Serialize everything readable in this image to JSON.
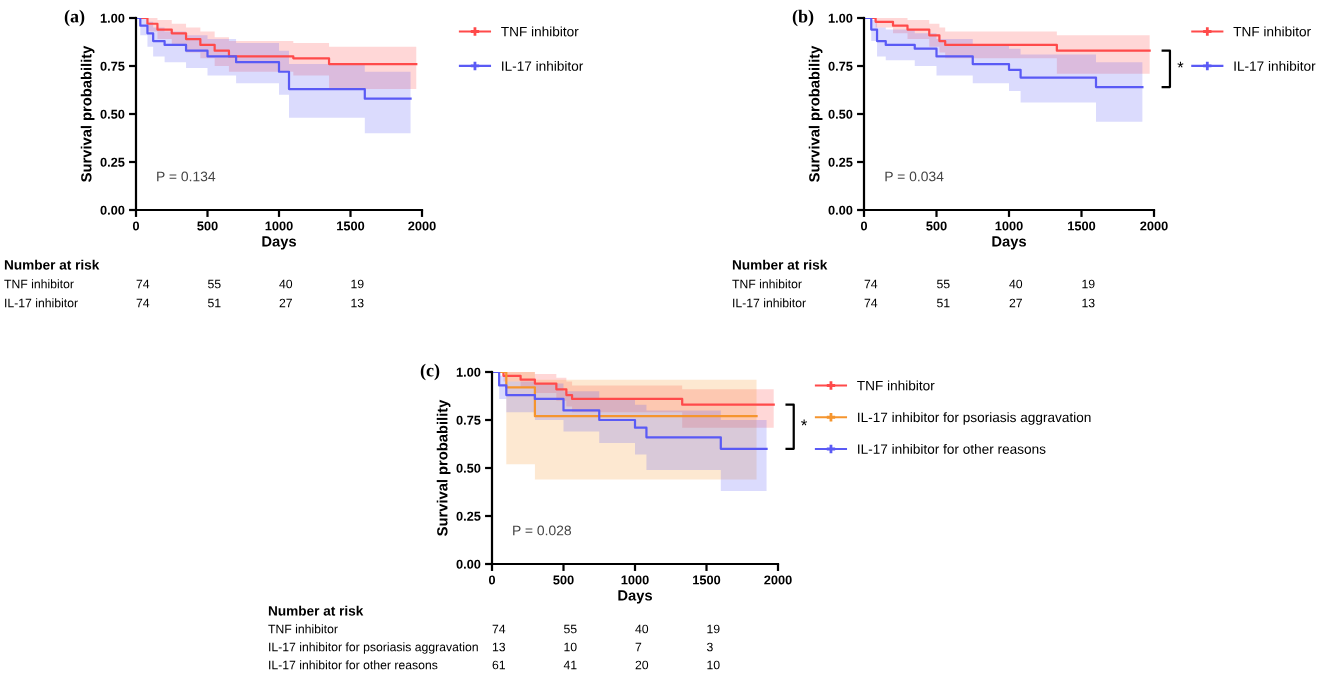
{
  "chart_data": [
    {
      "type": "step",
      "title": "(a)",
      "xlabel": "Days",
      "ylabel": "Survival probability",
      "xlim": [
        0,
        2000
      ],
      "ylim": [
        0,
        1.0
      ],
      "xticks": [
        0,
        500,
        1000,
        1500,
        2000
      ],
      "yticks": [
        {
          "value": 0,
          "label": "0.00"
        },
        {
          "value": 0.25,
          "label": "0.25"
        },
        {
          "value": 0.5,
          "label": "0.50"
        },
        {
          "value": 0.75,
          "label": "0.75"
        },
        {
          "value": 1.0,
          "label": "1.00"
        }
      ],
      "grid": false,
      "legend": "right",
      "annotations": [
        "P = 0.134",
        "Number at risk",
        "TNF inhibitor",
        "74",
        "55",
        "40",
        "19",
        "IL-17 inhibitor",
        "74",
        "51",
        "27",
        "13"
      ],
      "series": [
        {
          "name": "TNF inhibitor",
          "color": "#ff4a4a",
          "x": [
            0,
            80,
            150,
            250,
            350,
            450,
            550,
            650,
            1100,
            1350,
            1960
          ],
          "values": [
            1.0,
            0.97,
            0.94,
            0.92,
            0.89,
            0.86,
            0.83,
            0.8,
            0.79,
            0.76,
            0.76
          ],
          "lower": [
            1.0,
            0.93,
            0.89,
            0.86,
            0.82,
            0.79,
            0.75,
            0.72,
            0.7,
            0.63,
            0.63
          ],
          "upper": [
            1.0,
            1.0,
            0.99,
            0.97,
            0.95,
            0.93,
            0.9,
            0.88,
            0.87,
            0.85,
            0.85
          ]
        },
        {
          "name": "IL-17 inhibitor",
          "color": "#5a5af5",
          "x": [
            0,
            30,
            80,
            120,
            200,
            350,
            500,
            700,
            1000,
            1070,
            1600,
            1920
          ],
          "values": [
            1.0,
            0.96,
            0.92,
            0.88,
            0.86,
            0.83,
            0.8,
            0.77,
            0.72,
            0.63,
            0.58,
            0.58
          ],
          "lower": [
            1.0,
            0.91,
            0.85,
            0.8,
            0.77,
            0.74,
            0.7,
            0.66,
            0.6,
            0.48,
            0.4,
            0.4
          ],
          "upper": [
            1.0,
            1.0,
            0.98,
            0.95,
            0.93,
            0.91,
            0.89,
            0.87,
            0.83,
            0.76,
            0.72,
            0.72
          ]
        }
      ]
    },
    {
      "type": "step",
      "title": "(b)",
      "xlabel": "Days",
      "ylabel": "Survival probability",
      "xlim": [
        0,
        2000
      ],
      "ylim": [
        0,
        1.0
      ],
      "xticks": [
        0,
        500,
        1000,
        1500,
        2000
      ],
      "yticks": [
        {
          "value": 0,
          "label": "0.00"
        },
        {
          "value": 0.25,
          "label": "0.25"
        },
        {
          "value": 0.5,
          "label": "0.50"
        },
        {
          "value": 0.75,
          "label": "0.75"
        },
        {
          "value": 1.0,
          "label": "1.00"
        }
      ],
      "grid": false,
      "legend": "right",
      "annotations": [
        "P = 0.034",
        "Number at risk",
        "TNF inhibitor",
        "74",
        "55",
        "40",
        "19",
        "IL-17 inhibitor",
        "74",
        "51",
        "27",
        "13",
        "*"
      ],
      "series": [
        {
          "name": "TNF inhibitor",
          "color": "#ff4a4a",
          "x": [
            0,
            80,
            200,
            300,
            450,
            520,
            560,
            1330,
            1970
          ],
          "values": [
            1.0,
            0.98,
            0.96,
            0.94,
            0.91,
            0.88,
            0.86,
            0.83,
            0.83
          ],
          "lower": [
            1.0,
            0.95,
            0.92,
            0.89,
            0.85,
            0.82,
            0.79,
            0.71,
            0.71
          ],
          "upper": [
            1.0,
            1.0,
            1.0,
            0.99,
            0.97,
            0.95,
            0.93,
            0.91,
            0.91
          ]
        },
        {
          "name": "IL-17 inhibitor",
          "color": "#5a5af5",
          "x": [
            0,
            50,
            90,
            150,
            350,
            500,
            750,
            1000,
            1080,
            1600,
            1920
          ],
          "values": [
            1.0,
            0.94,
            0.88,
            0.86,
            0.84,
            0.8,
            0.76,
            0.73,
            0.69,
            0.64,
            0.64
          ],
          "lower": [
            1.0,
            0.88,
            0.8,
            0.78,
            0.75,
            0.7,
            0.66,
            0.62,
            0.56,
            0.46,
            0.46
          ],
          "upper": [
            1.0,
            0.99,
            0.95,
            0.94,
            0.92,
            0.89,
            0.86,
            0.84,
            0.81,
            0.77,
            0.77
          ]
        }
      ]
    },
    {
      "type": "step",
      "title": "(c)",
      "xlabel": "Days",
      "ylabel": "Survival probability",
      "xlim": [
        0,
        2000
      ],
      "ylim": [
        0,
        1.0
      ],
      "xticks": [
        0,
        500,
        1000,
        1500,
        2000
      ],
      "yticks": [
        {
          "value": 0,
          "label": "0.00"
        },
        {
          "value": 0.25,
          "label": "0.25"
        },
        {
          "value": 0.5,
          "label": "0.50"
        },
        {
          "value": 0.75,
          "label": "0.75"
        },
        {
          "value": 1.0,
          "label": "1.00"
        }
      ],
      "grid": false,
      "legend": "right",
      "annotations": [
        "P = 0.028",
        "Number at risk",
        "TNF inhibitor",
        "74",
        "55",
        "40",
        "19",
        "IL-17 inhibitor for psoriasis aggravation",
        "13",
        "10",
        "7",
        "3",
        "IL-17 inhibitor for other reasons",
        "61",
        "41",
        "20",
        "10",
        "*"
      ],
      "series": [
        {
          "name": "TNF inhibitor",
          "color": "#ff4a4a",
          "x": [
            0,
            80,
            200,
            300,
            450,
            520,
            560,
            1330,
            1970
          ],
          "values": [
            1.0,
            0.98,
            0.96,
            0.94,
            0.91,
            0.88,
            0.86,
            0.83,
            0.83
          ],
          "lower": [
            1.0,
            0.95,
            0.92,
            0.89,
            0.85,
            0.82,
            0.79,
            0.71,
            0.71
          ],
          "upper": [
            1.0,
            1.0,
            1.0,
            0.99,
            0.97,
            0.95,
            0.93,
            0.91,
            0.91
          ]
        },
        {
          "name": "IL-17 inhibitor for psoriasis aggravation",
          "color": "#f5952e",
          "x": [
            0,
            100,
            300,
            1850
          ],
          "values": [
            1.0,
            0.92,
            0.77,
            0.77
          ],
          "lower": [
            1.0,
            0.52,
            0.44,
            0.44
          ],
          "upper": [
            1.0,
            1.0,
            0.96,
            0.96
          ]
        },
        {
          "name": "IL-17 inhibitor for other reasons",
          "color": "#5a5af5",
          "x": [
            0,
            50,
            100,
            300,
            500,
            750,
            1000,
            1080,
            1600,
            1920
          ],
          "values": [
            1.0,
            0.93,
            0.88,
            0.86,
            0.8,
            0.75,
            0.71,
            0.66,
            0.6,
            0.6
          ],
          "lower": [
            1.0,
            0.86,
            0.79,
            0.75,
            0.69,
            0.63,
            0.57,
            0.49,
            0.38,
            0.38
          ],
          "upper": [
            1.0,
            0.98,
            0.95,
            0.94,
            0.9,
            0.86,
            0.83,
            0.8,
            0.75,
            0.75
          ]
        }
      ]
    }
  ]
}
